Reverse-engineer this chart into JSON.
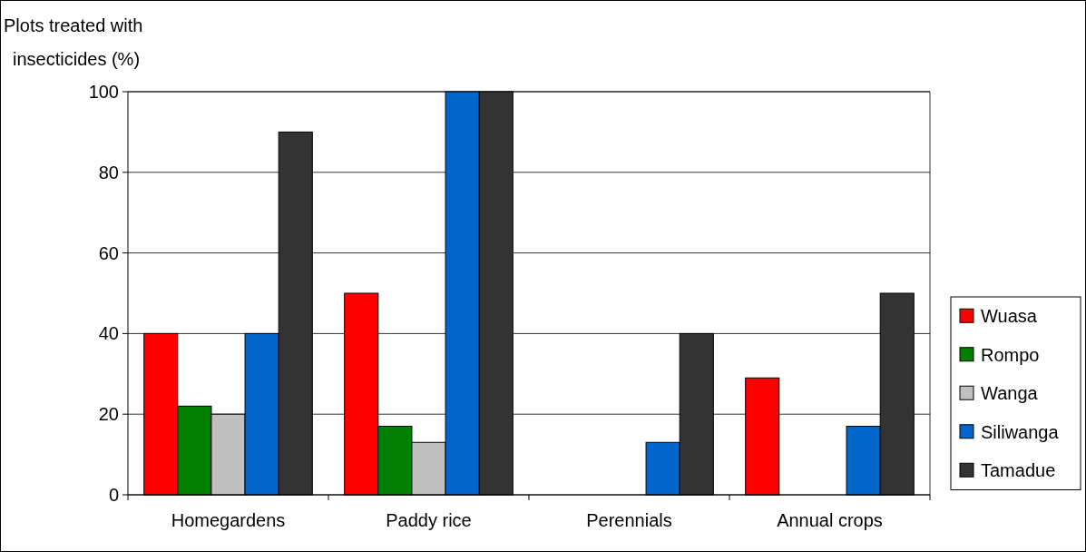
{
  "chart_data": {
    "type": "bar",
    "ylabel": "Plots treated with insecticides (%)",
    "categories": [
      "Homegardens",
      "Paddy rice",
      "Perennials",
      "Annual crops"
    ],
    "series": [
      {
        "name": "Wuasa",
        "color": "#ff0000",
        "values": [
          40,
          50,
          0,
          29
        ]
      },
      {
        "name": "Rompo",
        "color": "#008000",
        "values": [
          22,
          17,
          0,
          0
        ]
      },
      {
        "name": "Wanga",
        "color": "#c0c0c0",
        "values": [
          20,
          13,
          0,
          0
        ]
      },
      {
        "name": "Siliwanga",
        "color": "#0066cc",
        "values": [
          40,
          100,
          13,
          17
        ]
      },
      {
        "name": "Tamadue",
        "color": "#333333",
        "values": [
          90,
          100,
          40,
          50
        ]
      }
    ],
    "ylim": [
      0,
      100
    ],
    "yticks": [
      0,
      20,
      40,
      60,
      80,
      100
    ],
    "grid": "y",
    "legend": "right"
  }
}
